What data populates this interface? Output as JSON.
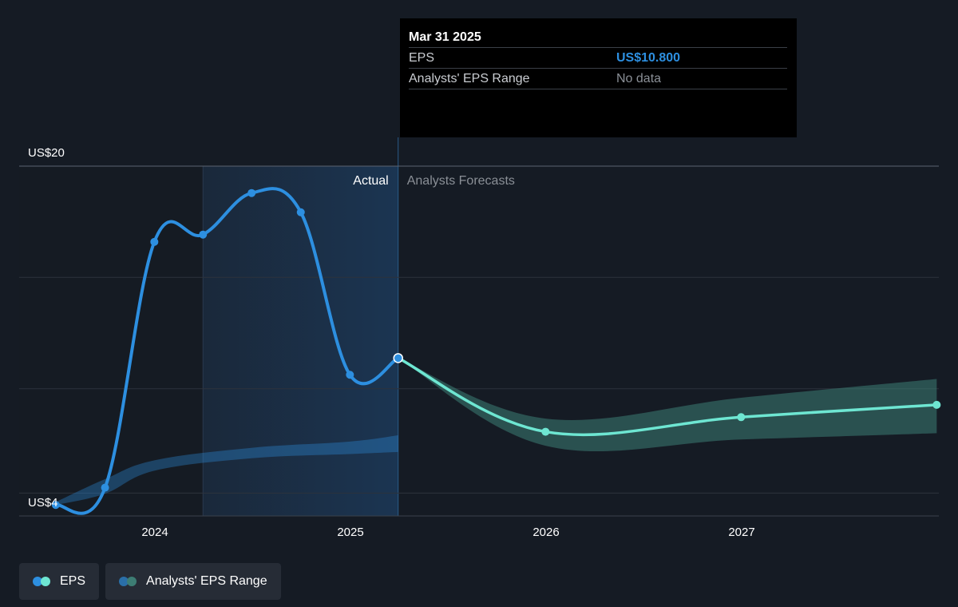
{
  "chart_data": {
    "type": "line",
    "y_axis": {
      "top_label": "US$20",
      "bottom_label": "US$4",
      "ylim": [
        4,
        20
      ]
    },
    "x_ticks": [
      "2024",
      "2025",
      "2026",
      "2027"
    ],
    "regions": {
      "actual_label": "Actual",
      "forecast_label": "Analysts Forecasts"
    },
    "series": [
      {
        "name": "EPS",
        "kind": "actual",
        "color": "#2d8fe0",
        "points": [
          {
            "date": "2023-06-30",
            "value": 3.76
          },
          {
            "date": "2023-09-30",
            "value": 4.59
          },
          {
            "date": "2023-12-31",
            "value": 16.37
          },
          {
            "date": "2024-03-31",
            "value": 16.72
          },
          {
            "date": "2024-06-30",
            "value": 18.71
          },
          {
            "date": "2024-09-30",
            "value": 17.79
          },
          {
            "date": "2024-12-31",
            "value": 10.0
          },
          {
            "date": "2025-03-31",
            "value": 10.8
          }
        ]
      },
      {
        "name": "EPS",
        "kind": "forecast",
        "color": "#6ee6d2",
        "points": [
          {
            "date": "2025-03-31",
            "value": 10.8
          },
          {
            "date": "2025-12-31",
            "value": 7.27
          },
          {
            "date": "2026-12-31",
            "value": 7.97
          },
          {
            "date": "2027-12-31",
            "value": 8.56
          }
        ]
      }
    ],
    "historical_range": {
      "name": "Analysts' EPS Range",
      "color": "#2d8fe0",
      "points": [
        {
          "date": "2023-06-30",
          "low": 3.76,
          "high": 3.9
        },
        {
          "date": "2023-09-30",
          "low": 4.3,
          "high": 5.0
        },
        {
          "date": "2023-12-31",
          "low": 5.4,
          "high": 5.9
        },
        {
          "date": "2024-06-30",
          "low": 6.0,
          "high": 6.5
        },
        {
          "date": "2024-12-31",
          "low": 6.2,
          "high": 6.8
        },
        {
          "date": "2025-03-31",
          "low": 6.3,
          "high": 7.1
        }
      ]
    },
    "forecast_range": {
      "name": "Analysts' EPS Range",
      "color": "#3d7d74",
      "points": [
        {
          "date": "2025-03-31",
          "low": 10.8,
          "high": 10.8
        },
        {
          "date": "2025-12-31",
          "low": 6.6,
          "high": 7.9
        },
        {
          "date": "2026-12-31",
          "low": 6.9,
          "high": 8.9
        },
        {
          "date": "2027-12-31",
          "low": 7.2,
          "high": 9.8
        }
      ]
    },
    "grid": true
  },
  "tooltip": {
    "date": "Mar 31 2025",
    "rows": [
      {
        "label": "EPS",
        "value": "US$10.800"
      },
      {
        "label": "Analysts' EPS Range",
        "value": "No data"
      }
    ]
  },
  "legend": {
    "items": [
      {
        "label": "EPS",
        "colors": [
          "#2d8fe0",
          "#6ee6d2"
        ]
      },
      {
        "label": "Analysts' EPS Range",
        "colors": [
          "#2a6fa8",
          "#3d7d74"
        ]
      }
    ]
  }
}
